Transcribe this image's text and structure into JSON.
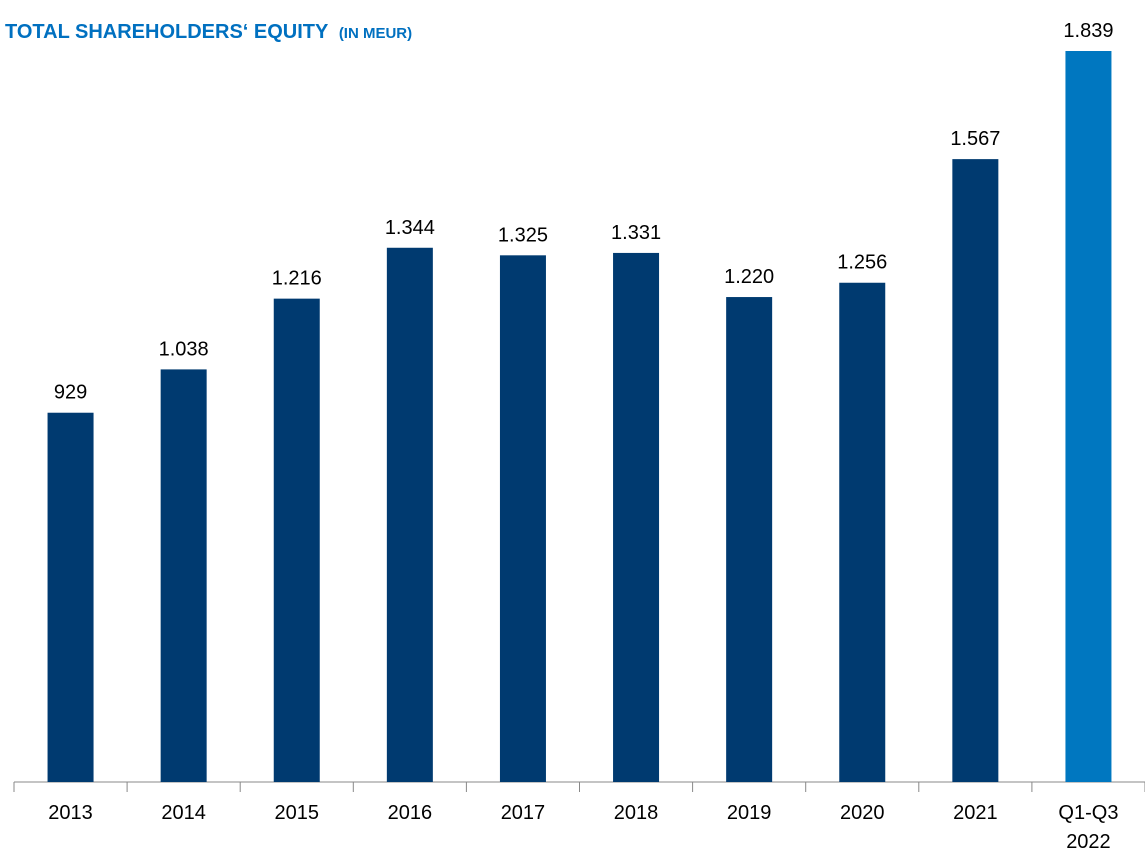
{
  "chart_data": {
    "type": "bar",
    "title": "TOTAL SHAREHOLDERS‘ EQUITY",
    "subtitle": "(IN MEUR)",
    "categories": [
      "2013",
      "2014",
      "2015",
      "2016",
      "2017",
      "2018",
      "2019",
      "2020",
      "2021",
      "Q1-Q3 2022"
    ],
    "values": [
      929,
      1038,
      1216,
      1344,
      1325,
      1331,
      1220,
      1256,
      1567,
      1839
    ],
    "value_labels": [
      "929",
      "1.038",
      "1.216",
      "1.344",
      "1.325",
      "1.331",
      "1.220",
      "1.256",
      "1.567",
      "1.839"
    ],
    "colors": [
      "#003a70",
      "#003a70",
      "#003a70",
      "#003a70",
      "#003a70",
      "#003a70",
      "#003a70",
      "#003a70",
      "#003a70",
      "#0077c0"
    ]
  }
}
